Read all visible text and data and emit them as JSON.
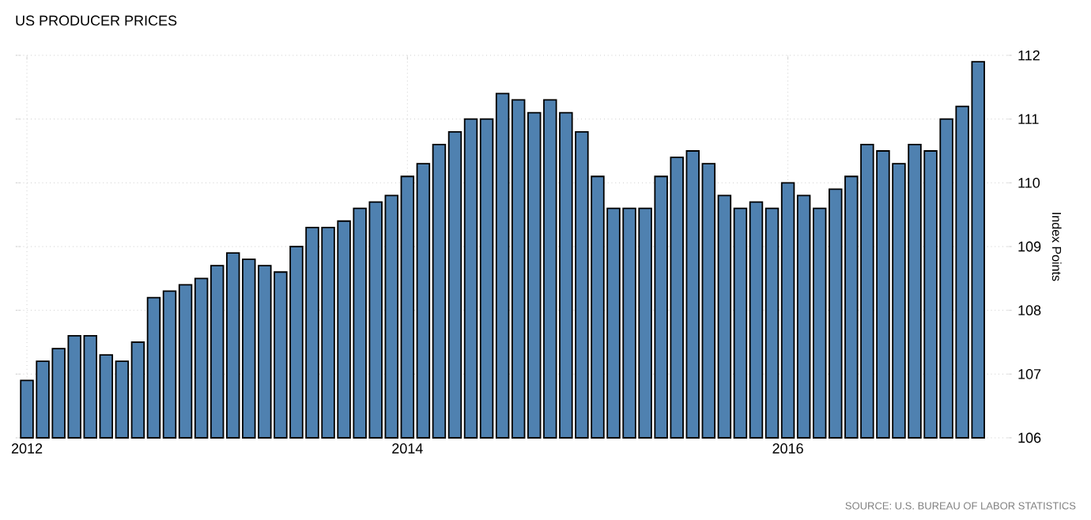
{
  "chart_data": {
    "type": "bar",
    "title": "US PRODUCER PRICES",
    "ylabel": "Index Points",
    "annotations": [
      "SOURCE: U.S. BUREAU OF LABOR STATISTICS"
    ],
    "x": [
      "2012-01",
      "2012-02",
      "2012-03",
      "2012-04",
      "2012-05",
      "2012-06",
      "2012-07",
      "2012-08",
      "2012-09",
      "2012-10",
      "2012-11",
      "2012-12",
      "2013-01",
      "2013-02",
      "2013-03",
      "2013-04",
      "2013-05",
      "2013-06",
      "2013-07",
      "2013-08",
      "2013-09",
      "2013-10",
      "2013-11",
      "2013-12",
      "2014-01",
      "2014-02",
      "2014-03",
      "2014-04",
      "2014-05",
      "2014-06",
      "2014-07",
      "2014-08",
      "2014-09",
      "2014-10",
      "2014-11",
      "2014-12",
      "2015-01",
      "2015-02",
      "2015-03",
      "2015-04",
      "2015-05",
      "2015-06",
      "2015-07",
      "2015-08",
      "2015-09",
      "2015-10",
      "2015-11",
      "2015-12",
      "2016-01",
      "2016-02",
      "2016-03",
      "2016-04",
      "2016-05",
      "2016-06",
      "2016-07",
      "2016-08",
      "2016-09",
      "2016-10",
      "2016-11",
      "2016-12",
      "2017-01"
    ],
    "values": [
      106.9,
      107.2,
      107.4,
      107.6,
      107.6,
      107.3,
      107.2,
      107.5,
      108.2,
      108.3,
      108.4,
      108.5,
      108.7,
      108.9,
      108.8,
      108.7,
      108.6,
      109.0,
      109.3,
      109.3,
      109.4,
      109.6,
      109.7,
      109.8,
      110.1,
      110.3,
      110.6,
      110.8,
      111.0,
      111.0,
      111.4,
      111.3,
      111.1,
      111.3,
      111.1,
      110.8,
      110.1,
      109.6,
      109.6,
      109.6,
      110.1,
      110.4,
      110.5,
      110.3,
      109.8,
      109.6,
      109.7,
      109.6,
      110.0,
      109.8,
      109.6,
      109.9,
      110.1,
      110.6,
      110.5,
      110.3,
      110.6,
      110.5,
      111.0,
      111.2,
      111.9
    ],
    "color": "#4f81b0",
    "xlim": [
      "2011-12-10",
      "2017-03-05"
    ],
    "xticks": [
      "2012",
      "2014",
      "2016"
    ],
    "ylim": [
      106,
      112
    ],
    "yticks": [
      106,
      107,
      108,
      109,
      110,
      111,
      112
    ],
    "grid": true
  }
}
